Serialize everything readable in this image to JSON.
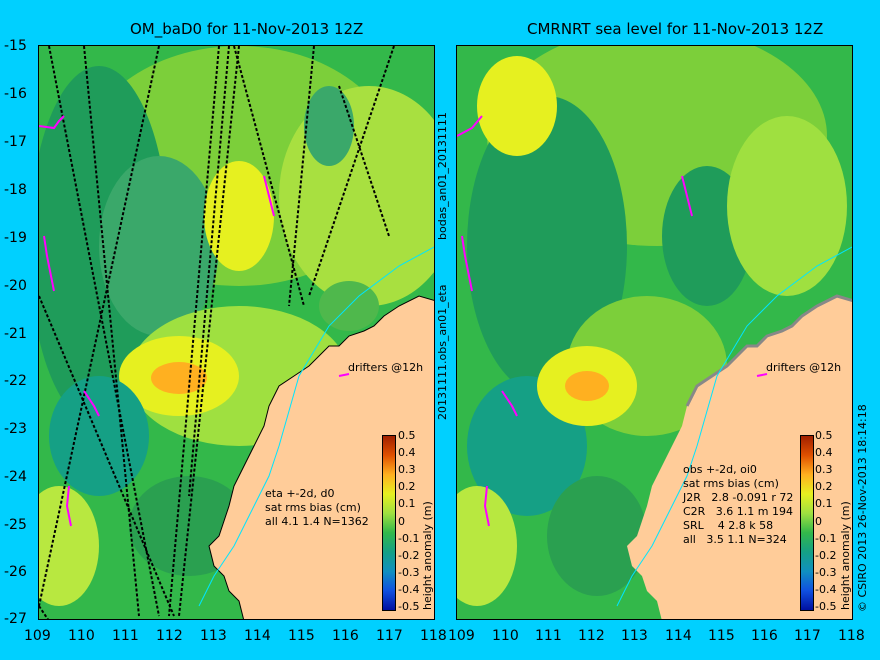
{
  "left_title": "OM_baD0 for 11-Nov-2013 12Z",
  "right_title": "CMRNRT sea level  for 11-Nov-2013 12Z",
  "y_ticks": [
    "-15",
    "-16",
    "-17",
    "-18",
    "-19",
    "-20",
    "-21",
    "-22",
    "-23",
    "-24",
    "-25",
    "-26",
    "-27"
  ],
  "x_ticks": [
    "109",
    "110",
    "111",
    "112",
    "113",
    "114",
    "115",
    "116",
    "117",
    "118"
  ],
  "left_legend": "eta +-2d, d0\nsat rms bias (cm)\nall 4.1 1.4 N=1362",
  "right_legend": "obs +-2d, oi0\nsat rms bias (cm)\nJ2R   2.8 -0.091 r 72\nC2R   3.6 1.1 m 194\nSRL    4 2.8 k 58\nall   3.5 1.1 N=324",
  "drifters_label": "drifters @12h",
  "colorbar_ticks": [
    "0.5",
    "0.4",
    "0.3",
    "0.2",
    "0.1",
    "0",
    "-0.1",
    "-0.2",
    "-0.3",
    "-0.4",
    "-0.5"
  ],
  "colorbar_title": "height anomaly (m)",
  "vertical_top": "bodas_an01_20131111",
  "vertical_bottom": "20131111.obs_an01_eta",
  "copyright": "© CSIRO 2013   26-Nov-2013 18:14:18",
  "colors": {
    "background": "#00d0ff",
    "land": "#ffcc99",
    "coast": "#00e5ff",
    "drifter": "#ff00ff"
  }
}
